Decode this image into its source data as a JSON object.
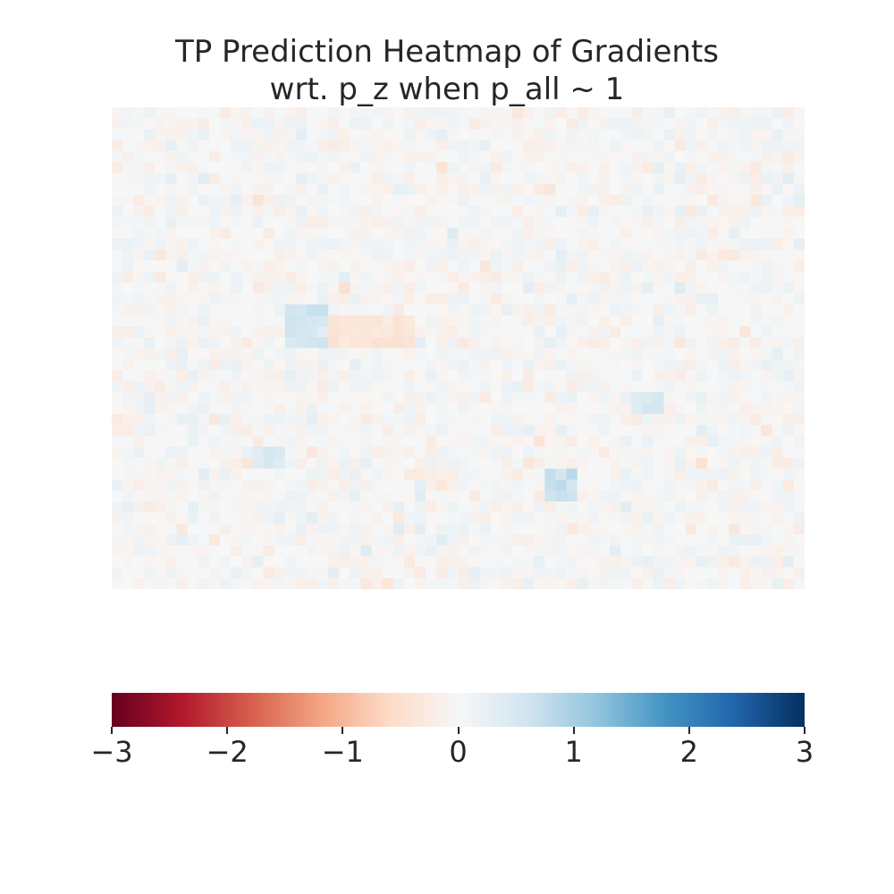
{
  "chart_data": {
    "type": "heatmap",
    "title_lines": [
      "TP Prediction Heatmap of Gradients",
      "wrt. p_z when p_all ~ 1"
    ],
    "rows": 44,
    "cols": 64,
    "value_note_generation": "seeded",
    "colormap": "RdBu",
    "vmin": -3,
    "vmax": 3,
    "colorbar": {
      "orientation": "horizontal",
      "ticks": [
        -3,
        -2,
        -1,
        0,
        1,
        2,
        3
      ],
      "tick_labels": [
        "−3",
        "−2",
        "−1",
        "0",
        "1",
        "2",
        "3"
      ]
    },
    "hotspots": [
      {
        "r0": 18,
        "r1": 21,
        "c0": 16,
        "c1": 19,
        "value": 0.55
      },
      {
        "r0": 19,
        "r1": 21,
        "c0": 20,
        "c1": 27,
        "value": -0.35
      },
      {
        "r0": 33,
        "r1": 35,
        "c0": 40,
        "c1": 42,
        "value": 0.65
      },
      {
        "r0": 26,
        "r1": 27,
        "c0": 48,
        "c1": 50,
        "value": 0.45
      },
      {
        "r0": 31,
        "r1": 32,
        "c0": 13,
        "c1": 15,
        "value": 0.4
      }
    ],
    "grid": false,
    "axes_visible": false
  }
}
